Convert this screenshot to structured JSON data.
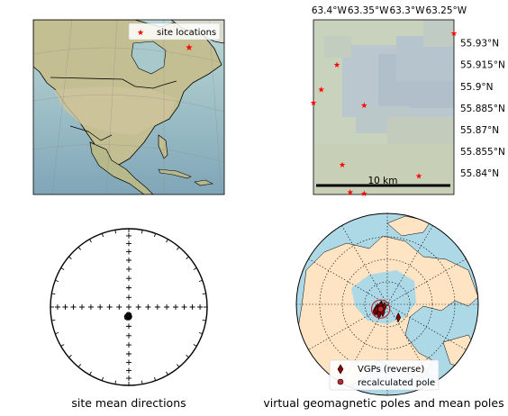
{
  "chart_data": [
    {
      "type": "scatter",
      "panel": "north-america-map",
      "legend": [
        "site locations"
      ],
      "legend_placement": "top-right",
      "series": [
        {
          "name": "site locations",
          "marker": "star",
          "color": "#ff0000",
          "x": [
            -63.33
          ],
          "y": [
            55.89
          ]
        }
      ]
    },
    {
      "type": "scatter",
      "panel": "site-zoom-map",
      "xticks": [
        "63.4°W",
        "63.35°W",
        "63.3°W",
        "63.25°W"
      ],
      "yticks": [
        "55.93°N",
        "55.915°N",
        "55.9°N",
        "55.885°N",
        "55.87°N",
        "55.855°N",
        "55.84°N"
      ],
      "xlim": [
        -63.42,
        -63.24
      ],
      "ylim": [
        55.825,
        55.946
      ],
      "scale_bar": "10 km",
      "series": [
        {
          "name": "site locations",
          "marker": "star",
          "color": "#ff0000",
          "x": [
            -63.24,
            -63.39,
            -63.41,
            -63.42,
            -63.355,
            -63.383,
            -63.373,
            -63.355,
            -63.285
          ],
          "y": [
            55.937,
            55.915,
            55.898,
            55.889,
            55.887,
            55.846,
            55.827,
            55.826,
            55.838
          ]
        }
      ]
    },
    {
      "type": "scatter",
      "panel": "equal-area-stereonet",
      "caption": "site mean directions",
      "series": [
        {
          "name": "site mean directions",
          "marker": "open-circle",
          "declination": [
            176,
            178,
            180,
            181,
            183,
            185,
            187,
            182,
            179,
            184,
            190,
            192
          ],
          "inclination": [
            -80,
            -81,
            -79,
            -80,
            -80,
            -81,
            -79,
            -82,
            -82,
            -82,
            -79,
            -80
          ]
        }
      ]
    },
    {
      "type": "scatter",
      "panel": "polar-projection",
      "caption": "virtual geomagnetic poles and mean poles",
      "legend": [
        "VGPs (reverse)",
        "recalculated pole"
      ],
      "legend_placement": "bottom-center",
      "series": [
        {
          "name": "VGPs (reverse)",
          "marker": "thin-diamond",
          "color": "#8b0000",
          "lon": [
            -70,
            -55,
            -45,
            -60,
            -80,
            -50,
            -30,
            -65,
            -40,
            -75,
            40
          ],
          "lat": [
            80,
            82,
            78,
            76,
            84,
            86,
            81,
            78,
            77,
            83,
            73
          ]
        },
        {
          "name": "recalculated pole",
          "marker": "circle",
          "color": "#c0282d",
          "lon": [
            -55
          ],
          "lat": [
            82
          ],
          "a95": 4.5
        }
      ]
    }
  ]
}
